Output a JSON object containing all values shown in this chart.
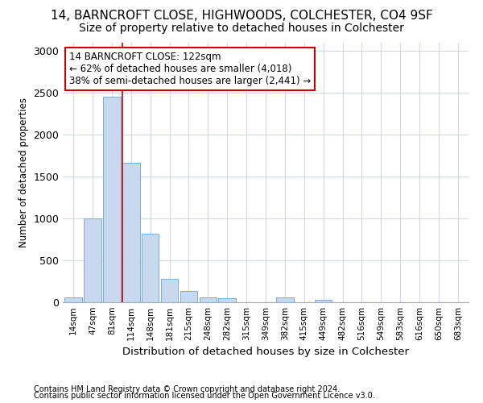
{
  "title1": "14, BARNCROFT CLOSE, HIGHWOODS, COLCHESTER, CO4 9SF",
  "title2": "Size of property relative to detached houses in Colchester",
  "xlabel": "Distribution of detached houses by size in Colchester",
  "ylabel": "Number of detached properties",
  "footnote1": "Contains HM Land Registry data © Crown copyright and database right 2024.",
  "footnote2": "Contains public sector information licensed under the Open Government Licence v3.0.",
  "annotation_line1": "14 BARNCROFT CLOSE: 122sqm",
  "annotation_line2": "← 62% of detached houses are smaller (4,018)",
  "annotation_line3": "38% of semi-detached houses are larger (2,441) →",
  "bar_labels": [
    "14sqm",
    "47sqm",
    "81sqm",
    "114sqm",
    "148sqm",
    "181sqm",
    "215sqm",
    "248sqm",
    "282sqm",
    "315sqm",
    "349sqm",
    "382sqm",
    "415sqm",
    "449sqm",
    "482sqm",
    "516sqm",
    "549sqm",
    "583sqm",
    "616sqm",
    "650sqm",
    "683sqm"
  ],
  "bar_values": [
    55,
    1000,
    2450,
    1660,
    820,
    275,
    130,
    55,
    45,
    0,
    0,
    55,
    0,
    30,
    0,
    0,
    0,
    0,
    0,
    0,
    0
  ],
  "bar_color": "#c8d8ee",
  "bar_edge_color": "#7aadd4",
  "red_line_index": 3,
  "red_line_color": "#cc0000",
  "ylim": [
    0,
    3100
  ],
  "yticks": [
    0,
    500,
    1000,
    1500,
    2000,
    2500,
    3000
  ],
  "bg_color": "#ffffff",
  "plot_bg_color": "#ffffff",
  "grid_color": "#d0d8ea",
  "annotation_box_color": "#ffffff",
  "annotation_box_edge": "#cc0000",
  "title1_fontsize": 11,
  "title2_fontsize": 10
}
